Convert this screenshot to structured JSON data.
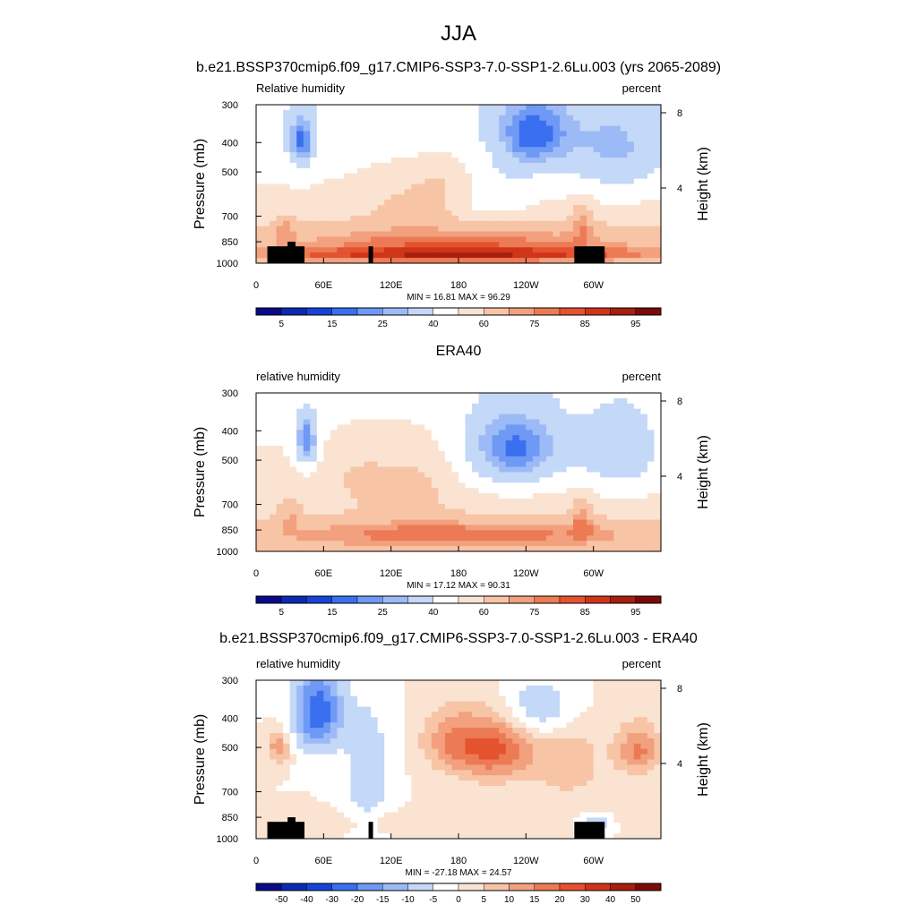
{
  "page": {
    "main_title": "JJA",
    "subtitle": "b.e21.BSSP370cmip6.f09_g17.CMIP6-SSP3-7.0-SSP1-2.6Lu.003 (yrs 2065-2089)"
  },
  "abs_palette": [
    "#0a0a8a",
    "#0c2ab0",
    "#1744d8",
    "#3a6ff0",
    "#6e99f5",
    "#9cbaf6",
    "#c4d8f7",
    "#ffffff",
    "#fbe3d2",
    "#f7c4a6",
    "#f2a07e",
    "#ec7a55",
    "#e4522f",
    "#cf3519",
    "#a81f0e",
    "#7a0b06"
  ],
  "diff_palette": [
    "#0a0a8a",
    "#0c2ab0",
    "#1744d8",
    "#3a6ff0",
    "#6e99f5",
    "#9cbaf6",
    "#c4d8f7",
    "#ffffff",
    "#fbe3d2",
    "#f7c4a6",
    "#f2a07e",
    "#ec7a55",
    "#e4522f",
    "#cf3519",
    "#a81f0e",
    "#7a0b06"
  ],
  "chart_data": [
    {
      "type": "heatmap",
      "title": "",
      "left_label": "Relative humidity",
      "right_label": "percent",
      "ylabel": "Pressure (mb)",
      "ylabel_right": "Height (km)",
      "x_ticks": [
        "0",
        "60E",
        "120E",
        "180",
        "120W",
        "60W"
      ],
      "x_tick_lons": [
        0,
        60,
        120,
        180,
        240,
        300
      ],
      "xlim": [
        0,
        360
      ],
      "y_ticks": [
        "300",
        "400",
        "500",
        "700",
        "850",
        "1000"
      ],
      "y_tick_values": [
        300,
        400,
        500,
        700,
        850,
        1000
      ],
      "ylim": [
        300,
        1000
      ],
      "height_ticks": [
        "8",
        "4"
      ],
      "height_km": [
        8,
        4
      ],
      "stats": "MIN =  16.81  MAX =  96.29",
      "colorbar_labels": [
        "5",
        "15",
        "25",
        "40",
        "60",
        "75",
        "85",
        "95"
      ],
      "colorbar_label_slots": [
        1,
        3,
        5,
        7,
        9,
        11,
        13,
        15
      ],
      "topography": true,
      "blobs": [
        {
          "lon": 180,
          "p": 860,
          "rx": 200,
          "rp": 130,
          "v": 22
        },
        {
          "lon": 180,
          "p": 940,
          "rx": 200,
          "rp": 50,
          "v": 20
        },
        {
          "lon": 130,
          "p": 630,
          "rx": 40,
          "rp": 150,
          "v": 8
        },
        {
          "lon": 170,
          "p": 560,
          "rx": 30,
          "rp": 120,
          "v": 10
        },
        {
          "lon": 40,
          "p": 400,
          "rx": 12,
          "rp": 80,
          "v": -28
        },
        {
          "lon": 245,
          "p": 380,
          "rx": 35,
          "rp": 110,
          "v": -28
        },
        {
          "lon": 320,
          "p": 430,
          "rx": 45,
          "rp": 150,
          "v": -18
        },
        {
          "lon": 25,
          "p": 760,
          "rx": 10,
          "rp": 80,
          "v": 12
        },
        {
          "lon": 290,
          "p": 720,
          "rx": 10,
          "rp": 110,
          "v": 14
        },
        {
          "lon": 210,
          "p": 600,
          "rx": 35,
          "rp": 110,
          "v": -12
        }
      ],
      "base": 50,
      "base_gradient": 8,
      "mode": "abs"
    },
    {
      "type": "heatmap",
      "title": "ERA40",
      "left_label": "relative humidity",
      "right_label": "percent",
      "ylabel": "Pressure (mb)",
      "ylabel_right": "Height (km)",
      "x_ticks": [
        "0",
        "60E",
        "120E",
        "180",
        "120W",
        "60W"
      ],
      "x_tick_lons": [
        0,
        60,
        120,
        180,
        240,
        300
      ],
      "xlim": [
        0,
        360
      ],
      "y_ticks": [
        "300",
        "400",
        "500",
        "700",
        "850",
        "1000"
      ],
      "y_tick_values": [
        300,
        400,
        500,
        700,
        850,
        1000
      ],
      "ylim": [
        300,
        1000
      ],
      "height_ticks": [
        "8",
        "4"
      ],
      "height_km": [
        8,
        4
      ],
      "stats": "MIN =  17.12  MAX =  90.31",
      "colorbar_labels": [
        "5",
        "15",
        "25",
        "40",
        "60",
        "75",
        "85",
        "95"
      ],
      "colorbar_label_slots": [
        1,
        3,
        5,
        7,
        9,
        11,
        13,
        15
      ],
      "topography": false,
      "blobs": [
        {
          "lon": 180,
          "p": 880,
          "rx": 200,
          "rp": 110,
          "v": 22
        },
        {
          "lon": 140,
          "p": 600,
          "rx": 35,
          "rp": 180,
          "v": 10
        },
        {
          "lon": 45,
          "p": 430,
          "rx": 10,
          "rp": 90,
          "v": -30
        },
        {
          "lon": 230,
          "p": 460,
          "rx": 45,
          "rp": 140,
          "v": -32
        },
        {
          "lon": 325,
          "p": 480,
          "rx": 40,
          "rp": 160,
          "v": -18
        },
        {
          "lon": 30,
          "p": 740,
          "rx": 10,
          "rp": 100,
          "v": 12
        },
        {
          "lon": 290,
          "p": 760,
          "rx": 10,
          "rp": 120,
          "v": 14
        },
        {
          "lon": 90,
          "p": 560,
          "rx": 30,
          "rp": 150,
          "v": 8
        }
      ],
      "base": 52,
      "base_gradient": 6,
      "mode": "abs"
    },
    {
      "type": "heatmap",
      "title": "b.e21.BSSP370cmip6.f09_g17.CMIP6-SSP3-7.0-SSP1-2.6Lu.003 - ERA40",
      "left_label": "relative humidity",
      "right_label": "percent",
      "ylabel": "Pressure (mb)",
      "ylabel_right": "Height (km)",
      "x_ticks": [
        "0",
        "60E",
        "120E",
        "180",
        "120W",
        "60W"
      ],
      "x_tick_lons": [
        0,
        60,
        120,
        180,
        240,
        300
      ],
      "xlim": [
        0,
        360
      ],
      "y_ticks": [
        "300",
        "400",
        "500",
        "700",
        "850",
        "1000"
      ],
      "y_tick_values": [
        300,
        400,
        500,
        700,
        850,
        1000
      ],
      "ylim": [
        300,
        1000
      ],
      "height_ticks": [
        "8",
        "4"
      ],
      "height_km": [
        8,
        4
      ],
      "stats": "MIN = -27.18  MAX =  24.57",
      "colorbar_labels": [
        "-50",
        "-40",
        "-30",
        "-20",
        "-15",
        "-10",
        "-5",
        "0",
        "5",
        "10",
        "15",
        "20",
        "30",
        "40",
        "50"
      ],
      "colorbar_label_slots": [
        1,
        2,
        3,
        4,
        5,
        6,
        7,
        8,
        9,
        10,
        11,
        12,
        13,
        14,
        15
      ],
      "topography": true,
      "blobs": [
        {
          "lon": 210,
          "p": 500,
          "rx": 40,
          "rp": 130,
          "v": 22
        },
        {
          "lon": 170,
          "p": 470,
          "rx": 25,
          "rp": 110,
          "v": 8
        },
        {
          "lon": 340,
          "p": 510,
          "rx": 20,
          "rp": 100,
          "v": 16
        },
        {
          "lon": 280,
          "p": 560,
          "rx": 30,
          "rp": 180,
          "v": 8
        },
        {
          "lon": 20,
          "p": 500,
          "rx": 10,
          "rp": 60,
          "v": 14
        },
        {
          "lon": 55,
          "p": 380,
          "rx": 22,
          "rp": 120,
          "v": -24
        },
        {
          "lon": 250,
          "p": 380,
          "rx": 35,
          "rp": 90,
          "v": -12
        },
        {
          "lon": 100,
          "p": 620,
          "rx": 20,
          "rp": 280,
          "v": -10
        },
        {
          "lon": 300,
          "p": 900,
          "rx": 14,
          "rp": 60,
          "v": -14
        },
        {
          "lon": 180,
          "p": 880,
          "rx": 120,
          "rp": 80,
          "v": 5
        }
      ],
      "base": 0,
      "base_gradient": 0,
      "mode": "diff"
    }
  ]
}
